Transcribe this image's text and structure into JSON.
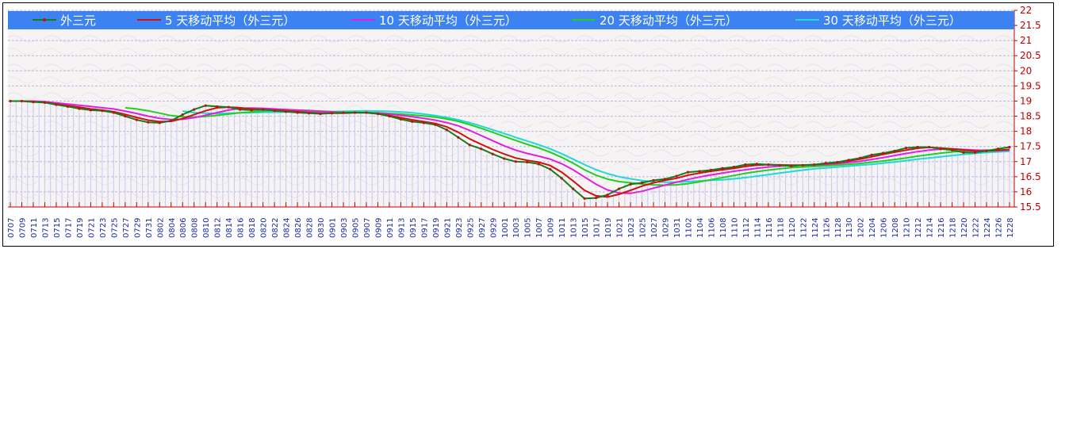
{
  "chart_data": {
    "type": "line",
    "title": "",
    "xlabel": "",
    "ylabel": "",
    "ylim": [
      15.5,
      22
    ],
    "yticks": [
      "15.5",
      "16",
      "16.5",
      "17",
      "17.5",
      "18",
      "18.5",
      "19",
      "19.5",
      "20",
      "20.5",
      "21",
      "21.5",
      "22"
    ],
    "grid": true,
    "legend_position": "top",
    "x_tick_labels": [
      "0707",
      "0709",
      "0711",
      "0713",
      "0715",
      "0717",
      "0719",
      "0721",
      "0723",
      "0725",
      "0727",
      "0729",
      "0731",
      "0802",
      "0804",
      "0806",
      "0808",
      "0810",
      "0812",
      "0814",
      "0816",
      "0818",
      "0820",
      "0822",
      "0824",
      "0826",
      "0828",
      "0830",
      "0901",
      "0903",
      "0905",
      "0907",
      "0909",
      "0911",
      "0913",
      "0915",
      "0917",
      "0919",
      "0921",
      "0923",
      "0925",
      "0927",
      "0929",
      "1001",
      "1003",
      "1005",
      "1007",
      "1009",
      "1011",
      "1013",
      "1015",
      "1017",
      "1019",
      "1021",
      "1023",
      "1025",
      "1027",
      "1029",
      "1031",
      "1102",
      "1104",
      "1106",
      "1108",
      "1110",
      "1112",
      "1114",
      "1116",
      "1118",
      "1120",
      "1122",
      "1124",
      "1126",
      "1128",
      "1130",
      "1202",
      "1204",
      "1206",
      "1208",
      "1210",
      "1212",
      "1214",
      "1216",
      "1218",
      "1220",
      "1222",
      "1224",
      "1226",
      "1228"
    ],
    "series": [
      {
        "name": "外三元",
        "color": "#1a7a1a",
        "values": [
          19.0,
          19.0,
          18.97,
          18.95,
          18.88,
          18.82,
          18.75,
          18.7,
          18.68,
          18.62,
          18.5,
          18.38,
          18.3,
          18.28,
          18.35,
          18.55,
          18.72,
          18.85,
          18.82,
          18.8,
          18.72,
          18.7,
          18.72,
          18.68,
          18.65,
          18.62,
          18.6,
          18.58,
          18.6,
          18.62,
          18.62,
          18.62,
          18.58,
          18.5,
          18.4,
          18.32,
          18.28,
          18.22,
          18.05,
          17.8,
          17.55,
          17.42,
          17.25,
          17.1,
          17.0,
          16.98,
          16.92,
          16.75,
          16.45,
          16.1,
          15.78,
          15.8,
          15.9,
          16.1,
          16.25,
          16.3,
          16.38,
          16.42,
          16.52,
          16.65,
          16.68,
          16.72,
          16.78,
          16.82,
          16.9,
          16.92,
          16.9,
          16.88,
          16.85,
          16.88,
          16.9,
          16.95,
          16.98,
          17.05,
          17.12,
          17.22,
          17.28,
          17.35,
          17.45,
          17.48,
          17.48,
          17.42,
          17.38,
          17.3,
          17.3,
          17.35,
          17.42,
          17.48
        ]
      },
      {
        "name": "5 天移动平均（外三元）",
        "color": "#d01010",
        "values": [
          19.0,
          19.0,
          18.98,
          18.96,
          18.9,
          18.85,
          18.8,
          18.74,
          18.7,
          18.65,
          18.56,
          18.46,
          18.37,
          18.32,
          18.33,
          18.42,
          18.55,
          18.68,
          18.78,
          18.8,
          18.78,
          18.74,
          18.72,
          18.7,
          18.68,
          18.65,
          18.62,
          18.6,
          18.6,
          18.6,
          18.61,
          18.61,
          18.58,
          18.52,
          18.45,
          18.38,
          18.32,
          18.26,
          18.15,
          17.97,
          17.75,
          17.57,
          17.4,
          17.25,
          17.12,
          17.04,
          16.98,
          16.87,
          16.65,
          16.36,
          16.05,
          15.87,
          15.83,
          15.92,
          16.05,
          16.19,
          16.3,
          16.38,
          16.45,
          16.55,
          16.62,
          16.68,
          16.73,
          16.78,
          16.84,
          16.88,
          16.9,
          16.89,
          16.88,
          16.88,
          16.9,
          16.93,
          16.96,
          17.02,
          17.08,
          17.16,
          17.24,
          17.31,
          17.38,
          17.44,
          17.47,
          17.45,
          17.42,
          17.38,
          17.35,
          17.35,
          17.37,
          17.4
        ]
      },
      {
        "name": "10 天移动平均（外三元）",
        "color": "#e020e0",
        "values": [
          19.0,
          19.0,
          19.0,
          18.98,
          18.94,
          18.9,
          18.86,
          18.82,
          18.78,
          18.74,
          18.67,
          18.59,
          18.5,
          18.43,
          18.39,
          18.4,
          18.45,
          18.53,
          18.62,
          18.7,
          18.76,
          18.77,
          18.76,
          18.74,
          18.72,
          18.7,
          18.68,
          18.66,
          18.64,
          18.62,
          18.62,
          18.62,
          18.6,
          18.57,
          18.53,
          18.48,
          18.43,
          18.37,
          18.29,
          18.18,
          18.03,
          17.86,
          17.69,
          17.52,
          17.38,
          17.27,
          17.18,
          17.08,
          16.93,
          16.73,
          16.49,
          16.25,
          16.06,
          15.96,
          15.95,
          16.02,
          16.12,
          16.22,
          16.32,
          16.41,
          16.49,
          16.56,
          16.62,
          16.68,
          16.73,
          16.78,
          16.82,
          16.85,
          16.87,
          16.88,
          16.89,
          16.91,
          16.93,
          16.97,
          17.01,
          17.07,
          17.13,
          17.2,
          17.27,
          17.33,
          17.38,
          17.41,
          17.42,
          17.4,
          17.38,
          17.37,
          17.37,
          17.38
        ]
      },
      {
        "name": "20 天移动平均（外三元）",
        "color": "#20d020",
        "values": [
          null,
          null,
          null,
          null,
          null,
          null,
          null,
          null,
          null,
          null,
          18.78,
          18.74,
          18.68,
          18.6,
          18.52,
          18.48,
          18.47,
          18.49,
          18.53,
          18.57,
          18.61,
          18.64,
          18.67,
          18.69,
          18.7,
          18.7,
          18.69,
          18.67,
          18.65,
          18.63,
          18.63,
          18.62,
          18.61,
          18.59,
          18.57,
          18.54,
          18.51,
          18.47,
          18.41,
          18.33,
          18.22,
          18.1,
          17.97,
          17.83,
          17.7,
          17.57,
          17.45,
          17.31,
          17.14,
          16.95,
          16.73,
          16.55,
          16.42,
          16.34,
          16.3,
          16.26,
          16.23,
          16.22,
          16.23,
          16.27,
          16.33,
          16.4,
          16.47,
          16.54,
          16.61,
          16.67,
          16.72,
          16.76,
          16.8,
          16.82,
          16.84,
          16.86,
          16.88,
          16.91,
          16.94,
          16.98,
          17.02,
          17.07,
          17.12,
          17.18,
          17.23,
          17.28,
          17.32,
          17.35,
          17.37,
          17.38,
          17.38,
          17.39
        ]
      },
      {
        "name": "30 天移动平均（外三元）",
        "color": "#20d8d8",
        "values": [
          null,
          null,
          null,
          null,
          null,
          null,
          null,
          null,
          null,
          null,
          null,
          null,
          null,
          null,
          null,
          18.67,
          18.62,
          18.6,
          18.59,
          18.6,
          18.61,
          18.62,
          18.63,
          18.63,
          18.64,
          18.64,
          18.64,
          18.65,
          18.65,
          18.66,
          18.67,
          18.68,
          18.67,
          18.66,
          18.64,
          18.61,
          18.57,
          18.52,
          18.46,
          18.38,
          18.28,
          18.17,
          18.05,
          17.93,
          17.8,
          17.68,
          17.56,
          17.42,
          17.26,
          17.08,
          16.9,
          16.73,
          16.6,
          16.5,
          16.43,
          16.37,
          16.33,
          16.32,
          16.32,
          16.34,
          16.36,
          16.38,
          16.4,
          16.43,
          16.47,
          16.52,
          16.57,
          16.62,
          16.67,
          16.72,
          16.76,
          16.79,
          16.82,
          16.85,
          16.88,
          16.91,
          16.95,
          16.99,
          17.03,
          17.08,
          17.12,
          17.16,
          17.2,
          17.24,
          17.27,
          17.3,
          17.32,
          17.34
        ]
      }
    ]
  }
}
